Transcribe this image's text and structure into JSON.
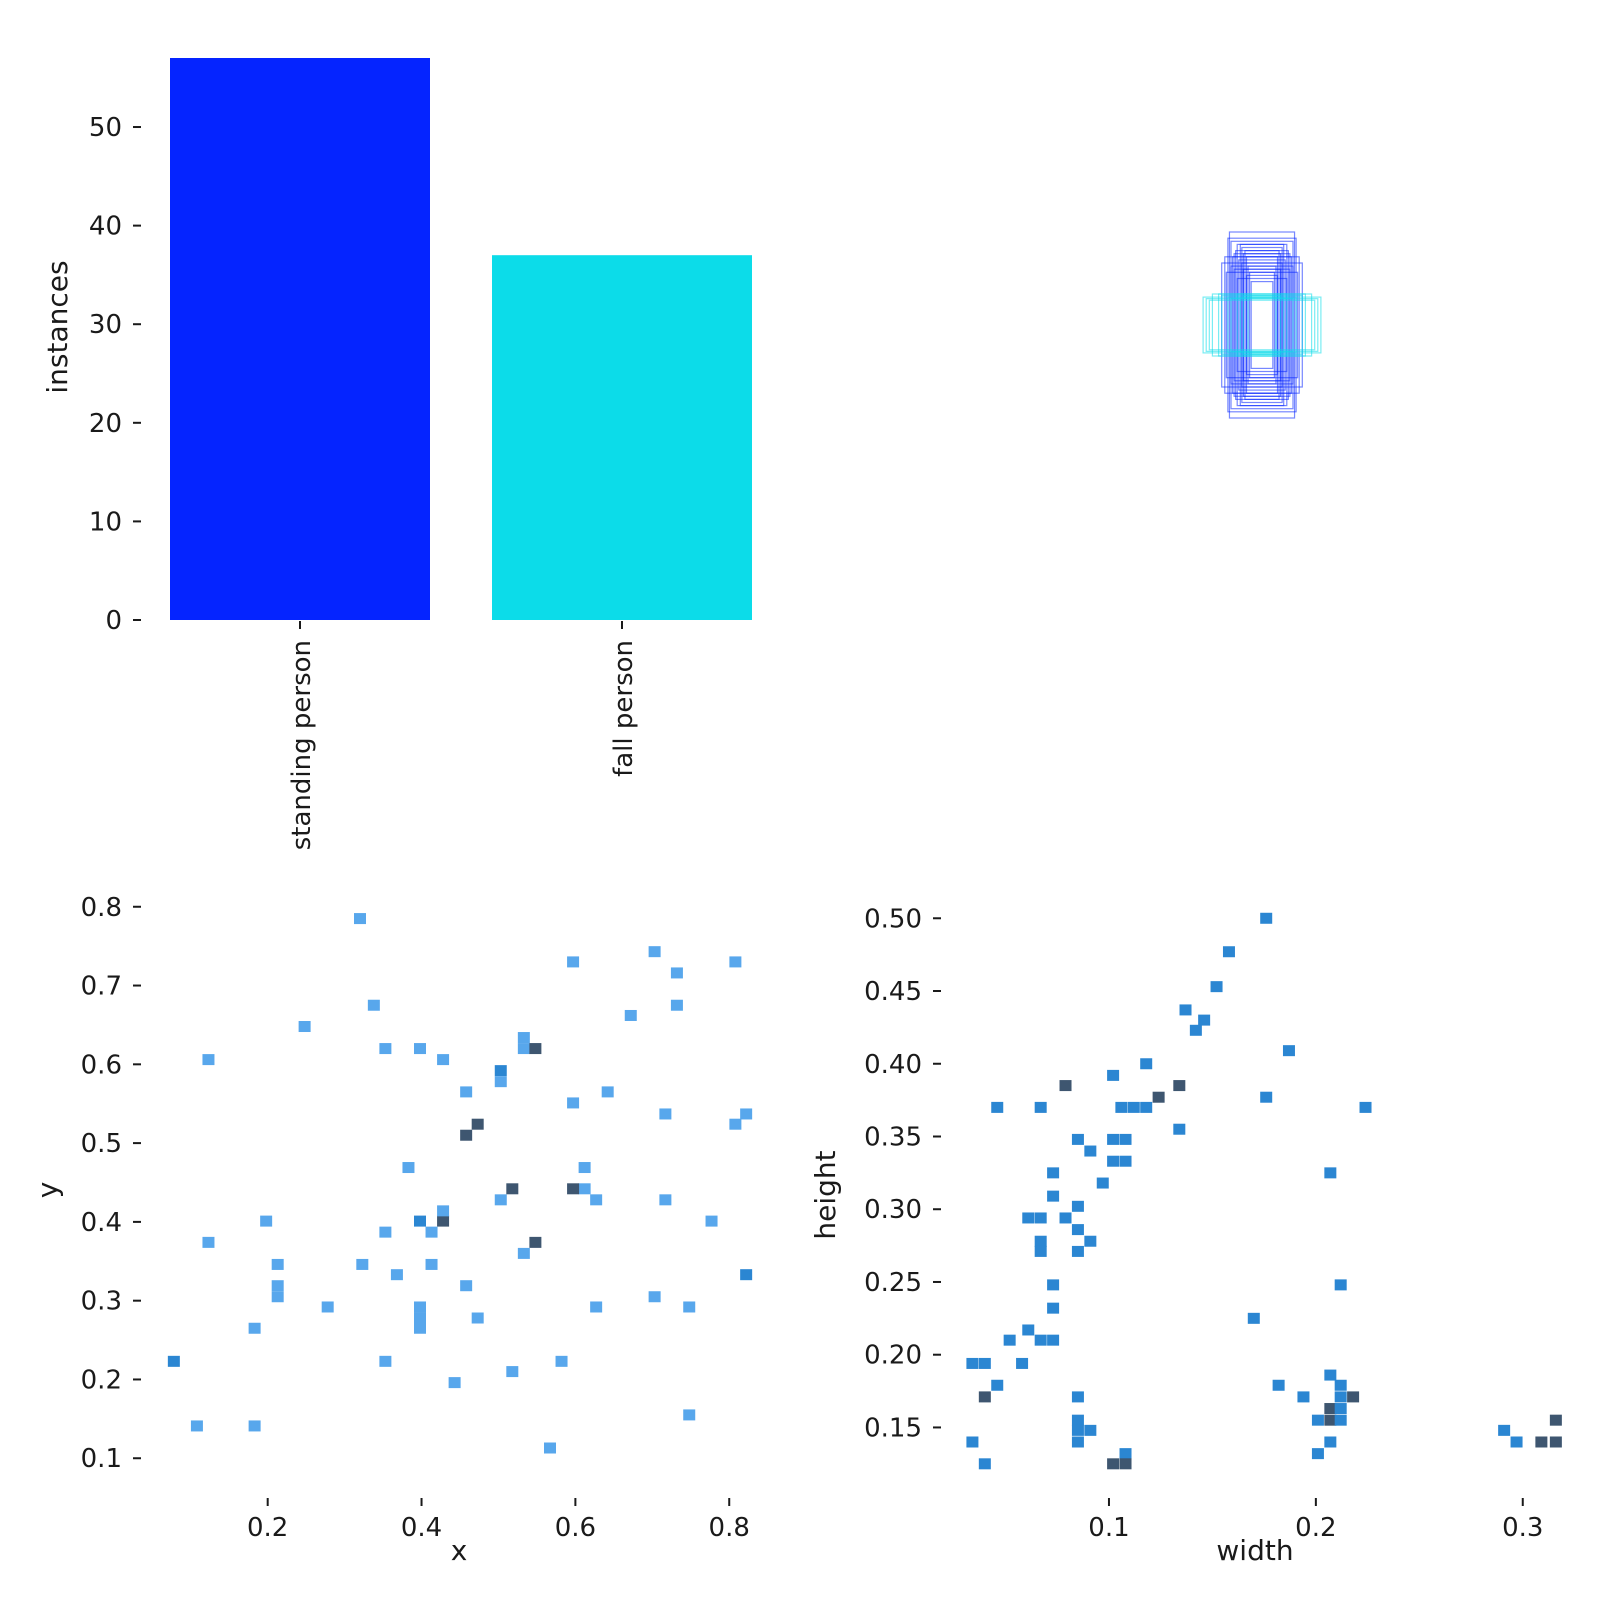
{
  "chart_data": [
    {
      "type": "bar",
      "panel": "top-left",
      "categories": [
        "standing person",
        "fall person"
      ],
      "values": [
        57,
        37
      ],
      "colors": [
        "#0524ff",
        "#0cdce9"
      ],
      "xlabel": "",
      "ylabel": "instances",
      "ylim": [
        0,
        57
      ],
      "yticks": [
        "0",
        "10",
        "20",
        "30",
        "40",
        "50"
      ],
      "grid": false
    },
    {
      "type": "other",
      "panel": "top-right",
      "description_kind": "overlaid bounding boxes centered",
      "series": [
        {
          "class": "standing person",
          "color": "#0524ff",
          "boxes_wh": [
            [
              0.105,
              0.3
            ],
            [
              0.11,
              0.28
            ],
            [
              0.1,
              0.27
            ],
            [
              0.08,
              0.26
            ],
            [
              0.065,
              0.25
            ],
            [
              0.055,
              0.24
            ],
            [
              0.045,
              0.19
            ],
            [
              0.04,
              0.17
            ],
            [
              0.12,
              0.22
            ],
            [
              0.13,
              0.2
            ],
            [
              0.09,
              0.23
            ],
            [
              0.075,
              0.21
            ],
            [
              0.06,
              0.18
            ],
            [
              0.05,
              0.16
            ],
            [
              0.085,
              0.24
            ],
            [
              0.1,
              0.19
            ],
            [
              0.07,
              0.26
            ],
            [
              0.035,
              0.14
            ],
            [
              0.095,
              0.22
            ],
            [
              0.115,
              0.17
            ],
            [
              0.05,
              0.22
            ],
            [
              0.065,
              0.2
            ],
            [
              0.08,
              0.15
            ],
            [
              0.09,
              0.18
            ],
            [
              0.06,
              0.23
            ]
          ]
        },
        {
          "class": "fall person",
          "color": "#0cdce9",
          "boxes_wh": [
            [
              0.19,
              0.09
            ],
            [
              0.18,
              0.085
            ],
            [
              0.16,
              0.1
            ],
            [
              0.13,
              0.095
            ],
            [
              0.11,
              0.09
            ],
            [
              0.08,
              0.1
            ],
            [
              0.06,
              0.095
            ],
            [
              0.045,
              0.09
            ],
            [
              0.17,
              0.08
            ],
            [
              0.14,
              0.1
            ],
            [
              0.1,
              0.085
            ],
            [
              0.07,
              0.09
            ]
          ]
        }
      ]
    },
    {
      "type": "heatmap",
      "panel": "bottom-left",
      "xlabel": "x",
      "ylabel": "y",
      "xlim": [
        0.06,
        0.84
      ],
      "ylim": [
        0.08,
        0.82
      ],
      "xticks": [
        "0.2",
        "0.4",
        "0.6",
        "0.8"
      ],
      "yticks": [
        "0.1",
        "0.2",
        "0.3",
        "0.4",
        "0.5",
        "0.6",
        "0.7",
        "0.8"
      ],
      "light_color": "#58a7ec",
      "mid_color": "#2b86d2",
      "dark_color": "#3e5670",
      "points": [
        [
          0.32,
          0.785,
          1
        ],
        [
          0.597,
          0.73,
          1
        ],
        [
          0.703,
          0.743,
          1
        ],
        [
          0.732,
          0.716,
          1
        ],
        [
          0.808,
          0.73,
          1
        ],
        [
          0.338,
          0.675,
          1
        ],
        [
          0.672,
          0.662,
          1
        ],
        [
          0.732,
          0.675,
          1
        ],
        [
          0.248,
          0.648,
          1
        ],
        [
          0.123,
          0.606,
          1
        ],
        [
          0.353,
          0.62,
          1
        ],
        [
          0.398,
          0.62,
          1
        ],
        [
          0.428,
          0.606,
          1
        ],
        [
          0.533,
          0.634,
          1
        ],
        [
          0.533,
          0.62,
          1
        ],
        [
          0.548,
          0.62,
          3
        ],
        [
          0.503,
          0.592,
          2
        ],
        [
          0.503,
          0.578,
          1
        ],
        [
          0.458,
          0.565,
          1
        ],
        [
          0.642,
          0.565,
          1
        ],
        [
          0.597,
          0.551,
          1
        ],
        [
          0.717,
          0.537,
          1
        ],
        [
          0.822,
          0.537,
          1
        ],
        [
          0.808,
          0.524,
          1
        ],
        [
          0.473,
          0.524,
          3
        ],
        [
          0.458,
          0.51,
          3
        ],
        [
          0.383,
          0.469,
          1
        ],
        [
          0.612,
          0.469,
          1
        ],
        [
          0.612,
          0.442,
          1
        ],
        [
          0.597,
          0.442,
          3
        ],
        [
          0.503,
          0.428,
          1
        ],
        [
          0.518,
          0.442,
          3
        ],
        [
          0.627,
          0.428,
          1
        ],
        [
          0.717,
          0.428,
          1
        ],
        [
          0.198,
          0.401,
          1
        ],
        [
          0.398,
          0.401,
          2
        ],
        [
          0.428,
          0.401,
          3
        ],
        [
          0.428,
          0.414,
          1
        ],
        [
          0.413,
          0.387,
          1
        ],
        [
          0.353,
          0.387,
          1
        ],
        [
          0.777,
          0.401,
          1
        ],
        [
          0.123,
          0.374,
          1
        ],
        [
          0.548,
          0.374,
          3
        ],
        [
          0.533,
          0.36,
          1
        ],
        [
          0.213,
          0.346,
          1
        ],
        [
          0.323,
          0.346,
          1
        ],
        [
          0.413,
          0.346,
          1
        ],
        [
          0.368,
          0.333,
          1
        ],
        [
          0.822,
          0.333,
          2
        ],
        [
          0.213,
          0.319,
          1
        ],
        [
          0.213,
          0.305,
          1
        ],
        [
          0.458,
          0.319,
          1
        ],
        [
          0.398,
          0.292,
          1
        ],
        [
          0.398,
          0.278,
          1
        ],
        [
          0.398,
          0.265,
          1
        ],
        [
          0.278,
          0.292,
          1
        ],
        [
          0.627,
          0.292,
          1
        ],
        [
          0.748,
          0.292,
          1
        ],
        [
          0.703,
          0.305,
          1
        ],
        [
          0.473,
          0.278,
          1
        ],
        [
          0.183,
          0.265,
          1
        ],
        [
          0.078,
          0.223,
          2
        ],
        [
          0.353,
          0.223,
          1
        ],
        [
          0.582,
          0.223,
          1
        ],
        [
          0.518,
          0.21,
          1
        ],
        [
          0.443,
          0.196,
          1
        ],
        [
          0.108,
          0.141,
          1
        ],
        [
          0.183,
          0.141,
          1
        ],
        [
          0.748,
          0.155,
          1
        ],
        [
          0.567,
          0.113,
          1
        ]
      ]
    },
    {
      "type": "heatmap",
      "panel": "bottom-right",
      "xlabel": "width",
      "ylabel": "height",
      "xlim": [
        0.028,
        0.318
      ],
      "ylim": [
        0.118,
        0.505
      ],
      "xticks": [
        "0.1",
        "0.2",
        "0.3"
      ],
      "yticks": [
        "0.15",
        "0.20",
        "0.25",
        "0.30",
        "0.35",
        "0.40",
        "0.45",
        "0.50"
      ],
      "light_color": "#58a7ec",
      "mid_color": "#2b86d2",
      "dark_color": "#3e5670",
      "points": [
        [
          0.176,
          0.5,
          2
        ],
        [
          0.158,
          0.477,
          2
        ],
        [
          0.152,
          0.453,
          2
        ],
        [
          0.137,
          0.437,
          2
        ],
        [
          0.146,
          0.43,
          2
        ],
        [
          0.142,
          0.423,
          2
        ],
        [
          0.187,
          0.409,
          2
        ],
        [
          0.118,
          0.4,
          2
        ],
        [
          0.102,
          0.392,
          2
        ],
        [
          0.079,
          0.385,
          3
        ],
        [
          0.134,
          0.385,
          3
        ],
        [
          0.124,
          0.377,
          3
        ],
        [
          0.176,
          0.377,
          2
        ],
        [
          0.046,
          0.37,
          2
        ],
        [
          0.067,
          0.37,
          2
        ],
        [
          0.106,
          0.37,
          2
        ],
        [
          0.112,
          0.37,
          2
        ],
        [
          0.118,
          0.37,
          2
        ],
        [
          0.224,
          0.37,
          2
        ],
        [
          0.134,
          0.355,
          2
        ],
        [
          0.085,
          0.348,
          2
        ],
        [
          0.102,
          0.348,
          2
        ],
        [
          0.108,
          0.348,
          2
        ],
        [
          0.091,
          0.34,
          2
        ],
        [
          0.102,
          0.333,
          2
        ],
        [
          0.108,
          0.333,
          2
        ],
        [
          0.073,
          0.325,
          2
        ],
        [
          0.207,
          0.325,
          2
        ],
        [
          0.097,
          0.318,
          2
        ],
        [
          0.073,
          0.309,
          2
        ],
        [
          0.085,
          0.302,
          2
        ],
        [
          0.061,
          0.294,
          2
        ],
        [
          0.067,
          0.294,
          2
        ],
        [
          0.079,
          0.294,
          2
        ],
        [
          0.067,
          0.278,
          2
        ],
        [
          0.085,
          0.286,
          2
        ],
        [
          0.091,
          0.278,
          2
        ],
        [
          0.067,
          0.271,
          2
        ],
        [
          0.085,
          0.271,
          2
        ],
        [
          0.073,
          0.248,
          2
        ],
        [
          0.212,
          0.248,
          2
        ],
        [
          0.073,
          0.232,
          2
        ],
        [
          0.17,
          0.225,
          2
        ],
        [
          0.061,
          0.217,
          2
        ],
        [
          0.052,
          0.21,
          2
        ],
        [
          0.067,
          0.21,
          2
        ],
        [
          0.073,
          0.21,
          2
        ],
        [
          0.034,
          0.194,
          2
        ],
        [
          0.04,
          0.194,
          2
        ],
        [
          0.058,
          0.194,
          2
        ],
        [
          0.207,
          0.186,
          2
        ],
        [
          0.046,
          0.179,
          2
        ],
        [
          0.182,
          0.179,
          2
        ],
        [
          0.212,
          0.179,
          2
        ],
        [
          0.04,
          0.171,
          3
        ],
        [
          0.085,
          0.171,
          2
        ],
        [
          0.194,
          0.171,
          2
        ],
        [
          0.212,
          0.171,
          2
        ],
        [
          0.218,
          0.171,
          3
        ],
        [
          0.207,
          0.163,
          3
        ],
        [
          0.212,
          0.163,
          2
        ],
        [
          0.085,
          0.155,
          2
        ],
        [
          0.201,
          0.155,
          2
        ],
        [
          0.207,
          0.155,
          3
        ],
        [
          0.212,
          0.155,
          2
        ],
        [
          0.316,
          0.155,
          3
        ],
        [
          0.085,
          0.148,
          2
        ],
        [
          0.091,
          0.148,
          2
        ],
        [
          0.291,
          0.148,
          2
        ],
        [
          0.034,
          0.14,
          2
        ],
        [
          0.085,
          0.14,
          2
        ],
        [
          0.207,
          0.14,
          2
        ],
        [
          0.297,
          0.14,
          2
        ],
        [
          0.309,
          0.14,
          3
        ],
        [
          0.316,
          0.14,
          3
        ],
        [
          0.108,
          0.132,
          2
        ],
        [
          0.201,
          0.132,
          2
        ],
        [
          0.04,
          0.125,
          2
        ],
        [
          0.102,
          0.125,
          3
        ],
        [
          0.108,
          0.125,
          3
        ]
      ]
    }
  ]
}
